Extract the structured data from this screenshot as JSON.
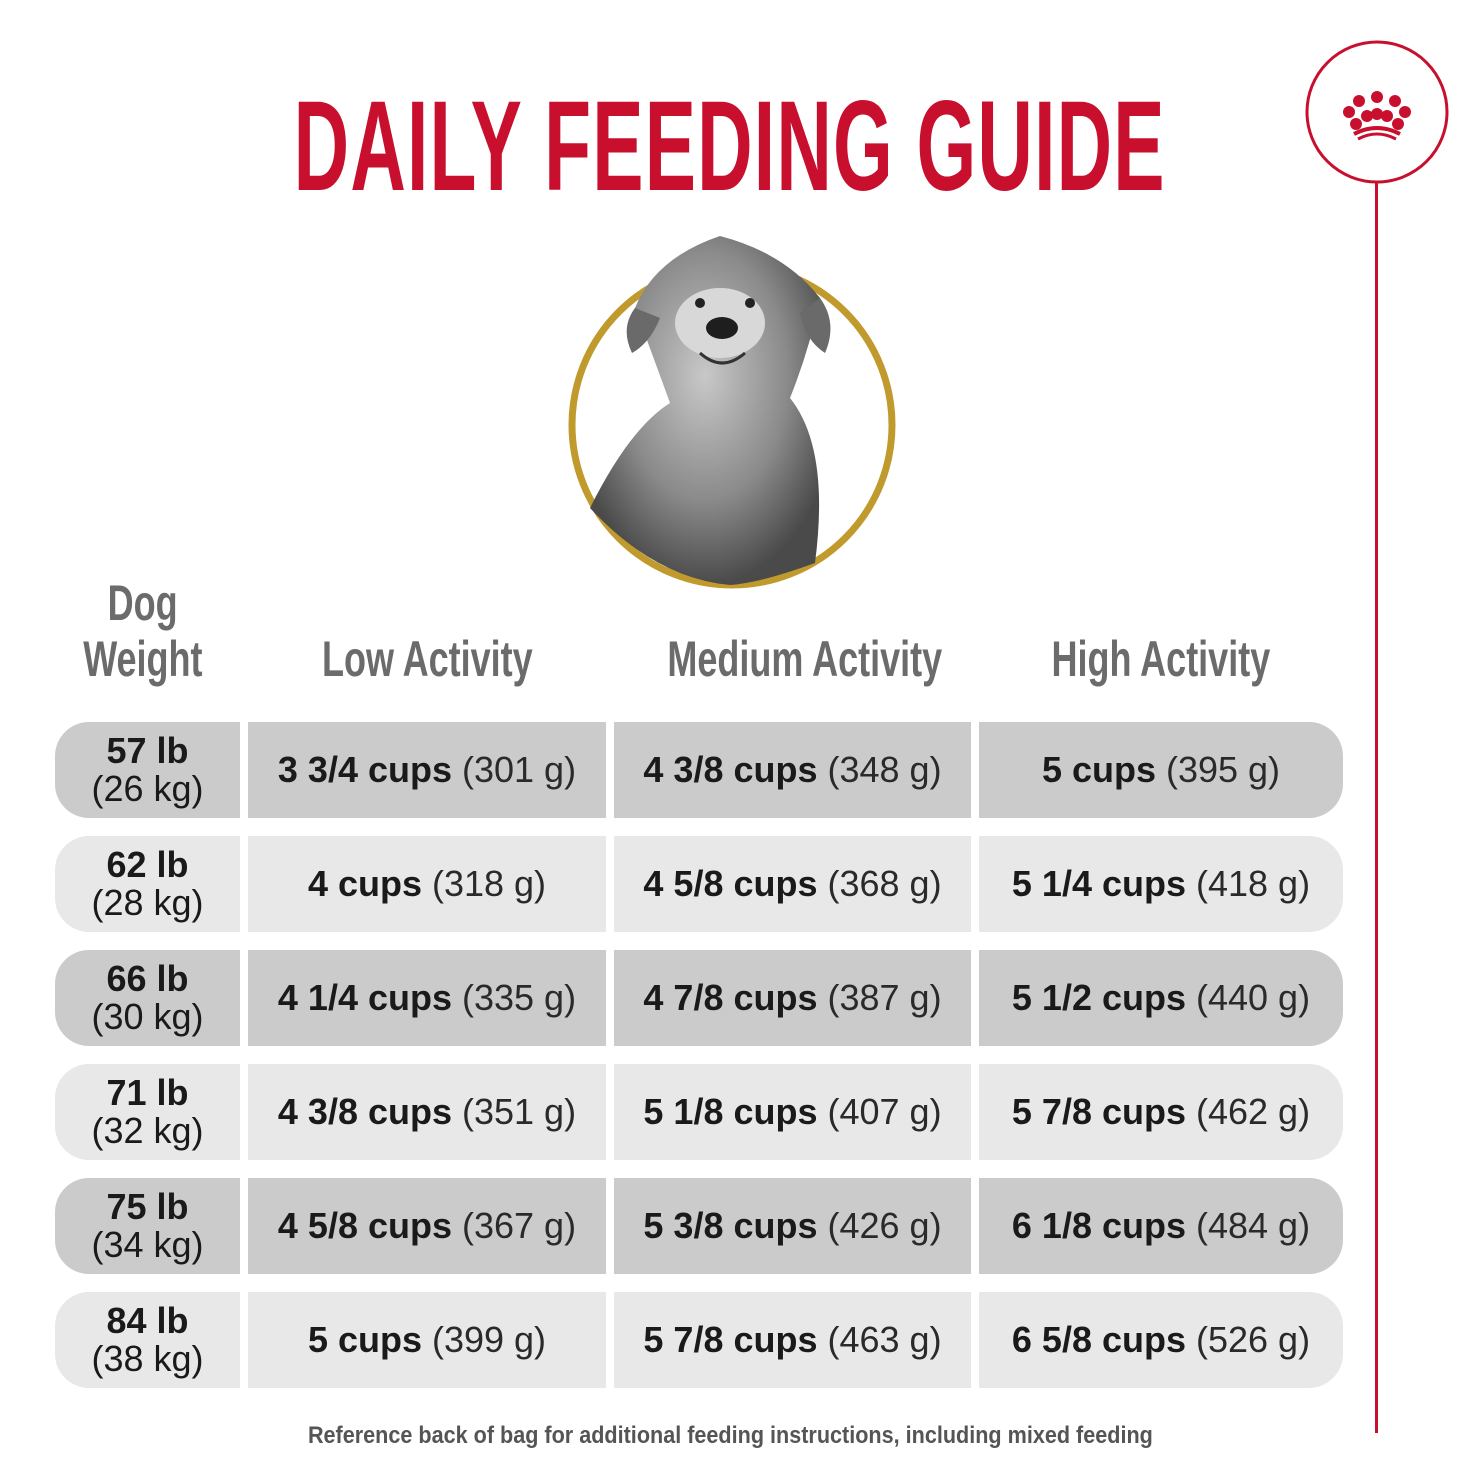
{
  "title": "DAILY FEEDING GUIDE",
  "logo": {
    "icon": "crown-icon",
    "color": "#c8102e"
  },
  "accent_colors": {
    "red": "#c8102e",
    "gold": "#c19a2e",
    "row_dark": "#cbcbcb",
    "row_light": "#e8e8e8"
  },
  "headers": {
    "weight_line1": "Dog",
    "weight_line2": "Weight",
    "low": "Low Activity",
    "medium": "Medium Activity",
    "high": "High Activity"
  },
  "rows": [
    {
      "lb": "57 lb",
      "kg": "(26 kg)",
      "low": {
        "cups": "3 3/4 cups",
        "grams": "(301 g)"
      },
      "medium": {
        "cups": "4 3/8 cups",
        "grams": "(348 g)"
      },
      "high": {
        "cups": "5 cups",
        "grams": "(395 g)"
      }
    },
    {
      "lb": "62 lb",
      "kg": "(28 kg)",
      "low": {
        "cups": "4 cups",
        "grams": "(318 g)"
      },
      "medium": {
        "cups": "4 5/8 cups",
        "grams": "(368 g)"
      },
      "high": {
        "cups": "5 1/4 cups",
        "grams": "(418 g)"
      }
    },
    {
      "lb": "66 lb",
      "kg": "(30 kg)",
      "low": {
        "cups": "4 1/4 cups",
        "grams": "(335 g)"
      },
      "medium": {
        "cups": "4 7/8 cups",
        "grams": "(387 g)"
      },
      "high": {
        "cups": "5 1/2 cups",
        "grams": "(440 g)"
      }
    },
    {
      "lb": "71 lb",
      "kg": "(32 kg)",
      "low": {
        "cups": "4 3/8 cups",
        "grams": "(351 g)"
      },
      "medium": {
        "cups": "5 1/8 cups",
        "grams": "(407 g)"
      },
      "high": {
        "cups": "5 7/8 cups",
        "grams": "(462 g)"
      }
    },
    {
      "lb": "75 lb",
      "kg": "(34 kg)",
      "low": {
        "cups": "4 5/8 cups",
        "grams": "(367 g)"
      },
      "medium": {
        "cups": "5 3/8 cups",
        "grams": "(426 g)"
      },
      "high": {
        "cups": "6 1/8 cups",
        "grams": "(484 g)"
      }
    },
    {
      "lb": "84 lb",
      "kg": "(38 kg)",
      "low": {
        "cups": "5 cups",
        "grams": "(399 g)"
      },
      "medium": {
        "cups": "5 7/8 cups",
        "grams": "(463 g)"
      },
      "high": {
        "cups": "6 5/8 cups",
        "grams": "(526 g)"
      }
    }
  ],
  "footer": "Reference back of bag for additional feeding instructions, including mixed feeding"
}
